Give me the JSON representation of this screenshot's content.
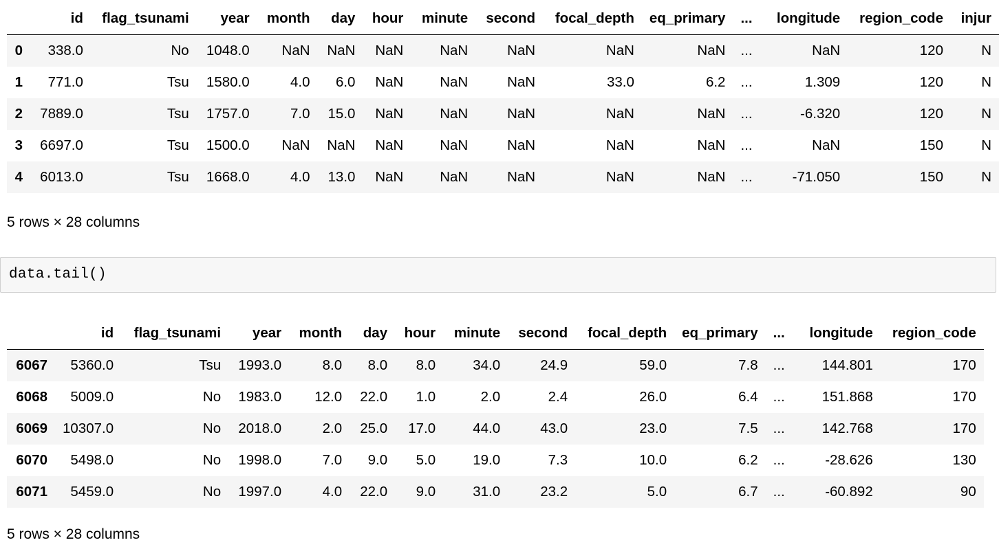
{
  "head_table": {
    "columns": [
      "",
      "id",
      "flag_tsunami",
      "year",
      "month",
      "day",
      "hour",
      "minute",
      "second",
      "focal_depth",
      "eq_primary",
      "...",
      "longitude",
      "region_code",
      "injur"
    ],
    "rows": [
      [
        "0",
        "338.0",
        "No",
        "1048.0",
        "NaN",
        "NaN",
        "NaN",
        "NaN",
        "NaN",
        "NaN",
        "NaN",
        "...",
        "NaN",
        "120",
        "N"
      ],
      [
        "1",
        "771.0",
        "Tsu",
        "1580.0",
        "4.0",
        "6.0",
        "NaN",
        "NaN",
        "NaN",
        "33.0",
        "6.2",
        "...",
        "1.309",
        "120",
        "N"
      ],
      [
        "2",
        "7889.0",
        "Tsu",
        "1757.0",
        "7.0",
        "15.0",
        "NaN",
        "NaN",
        "NaN",
        "NaN",
        "NaN",
        "...",
        "-6.320",
        "120",
        "N"
      ],
      [
        "3",
        "6697.0",
        "Tsu",
        "1500.0",
        "NaN",
        "NaN",
        "NaN",
        "NaN",
        "NaN",
        "NaN",
        "NaN",
        "...",
        "NaN",
        "150",
        "N"
      ],
      [
        "4",
        "6013.0",
        "Tsu",
        "1668.0",
        "4.0",
        "13.0",
        "NaN",
        "NaN",
        "NaN",
        "NaN",
        "NaN",
        "...",
        "-71.050",
        "150",
        "N"
      ]
    ],
    "shape_text": "5 rows × 28 columns"
  },
  "code_cell": {
    "source": "data.tail()"
  },
  "tail_table": {
    "columns": [
      "",
      "id",
      "flag_tsunami",
      "year",
      "month",
      "day",
      "hour",
      "minute",
      "second",
      "focal_depth",
      "eq_primary",
      "...",
      "longitude",
      "region_code"
    ],
    "rows": [
      [
        "6067",
        "5360.0",
        "Tsu",
        "1993.0",
        "8.0",
        "8.0",
        "8.0",
        "34.0",
        "24.9",
        "59.0",
        "7.8",
        "...",
        "144.801",
        "170"
      ],
      [
        "6068",
        "5009.0",
        "No",
        "1983.0",
        "12.0",
        "22.0",
        "1.0",
        "2.0",
        "2.4",
        "26.0",
        "6.4",
        "...",
        "151.868",
        "170"
      ],
      [
        "6069",
        "10307.0",
        "No",
        "2018.0",
        "2.0",
        "25.0",
        "17.0",
        "44.0",
        "43.0",
        "23.0",
        "7.5",
        "...",
        "142.768",
        "170"
      ],
      [
        "6070",
        "5498.0",
        "No",
        "1998.0",
        "7.0",
        "9.0",
        "5.0",
        "19.0",
        "7.3",
        "10.0",
        "6.2",
        "...",
        "-28.626",
        "130"
      ],
      [
        "6071",
        "5459.0",
        "No",
        "1997.0",
        "4.0",
        "22.0",
        "9.0",
        "31.0",
        "23.2",
        "5.0",
        "6.7",
        "...",
        "-60.892",
        "90"
      ]
    ],
    "shape_text": "5 rows × 28 columns"
  },
  "colors": {
    "row_stripe": "#f5f5f5",
    "code_background": "#f7f7f7",
    "code_border": "#cfcfcf"
  }
}
